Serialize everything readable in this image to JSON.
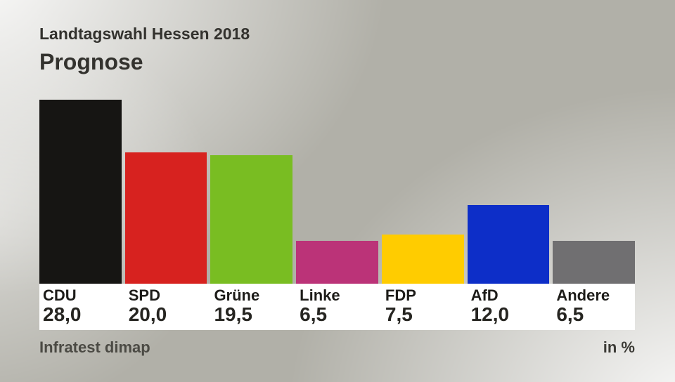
{
  "header": {
    "supertitle": "Landtagswahl Hessen 2018",
    "title": "Prognose"
  },
  "footer": {
    "source": "Infratest dimap",
    "unit": "in %"
  },
  "chart_data": {
    "type": "bar",
    "title": "Prognose",
    "subtitle": "Landtagswahl Hessen 2018",
    "categories": [
      "CDU",
      "SPD",
      "Grüne",
      "Linke",
      "FDP",
      "AfD",
      "Andere"
    ],
    "values": [
      28.0,
      20.0,
      19.5,
      6.5,
      7.5,
      12.0,
      6.5
    ],
    "value_labels": [
      "28,0",
      "20,0",
      "19,5",
      "6,5",
      "7,5",
      "12,0",
      "6,5"
    ],
    "bar_colors": [
      "#161513",
      "#d7221f",
      "#79bd22",
      "#bb3378",
      "#ffcc00",
      "#0d2ec8",
      "#706f71"
    ],
    "ylabel": "in %",
    "ylim": [
      0,
      28.2
    ],
    "grid": false,
    "legend": "none",
    "source": "Infratest dimap"
  },
  "style_colors": {
    "label_strip_background": "#ffffff",
    "background_base": "#b1b0a8",
    "title_text": "#33322e"
  }
}
